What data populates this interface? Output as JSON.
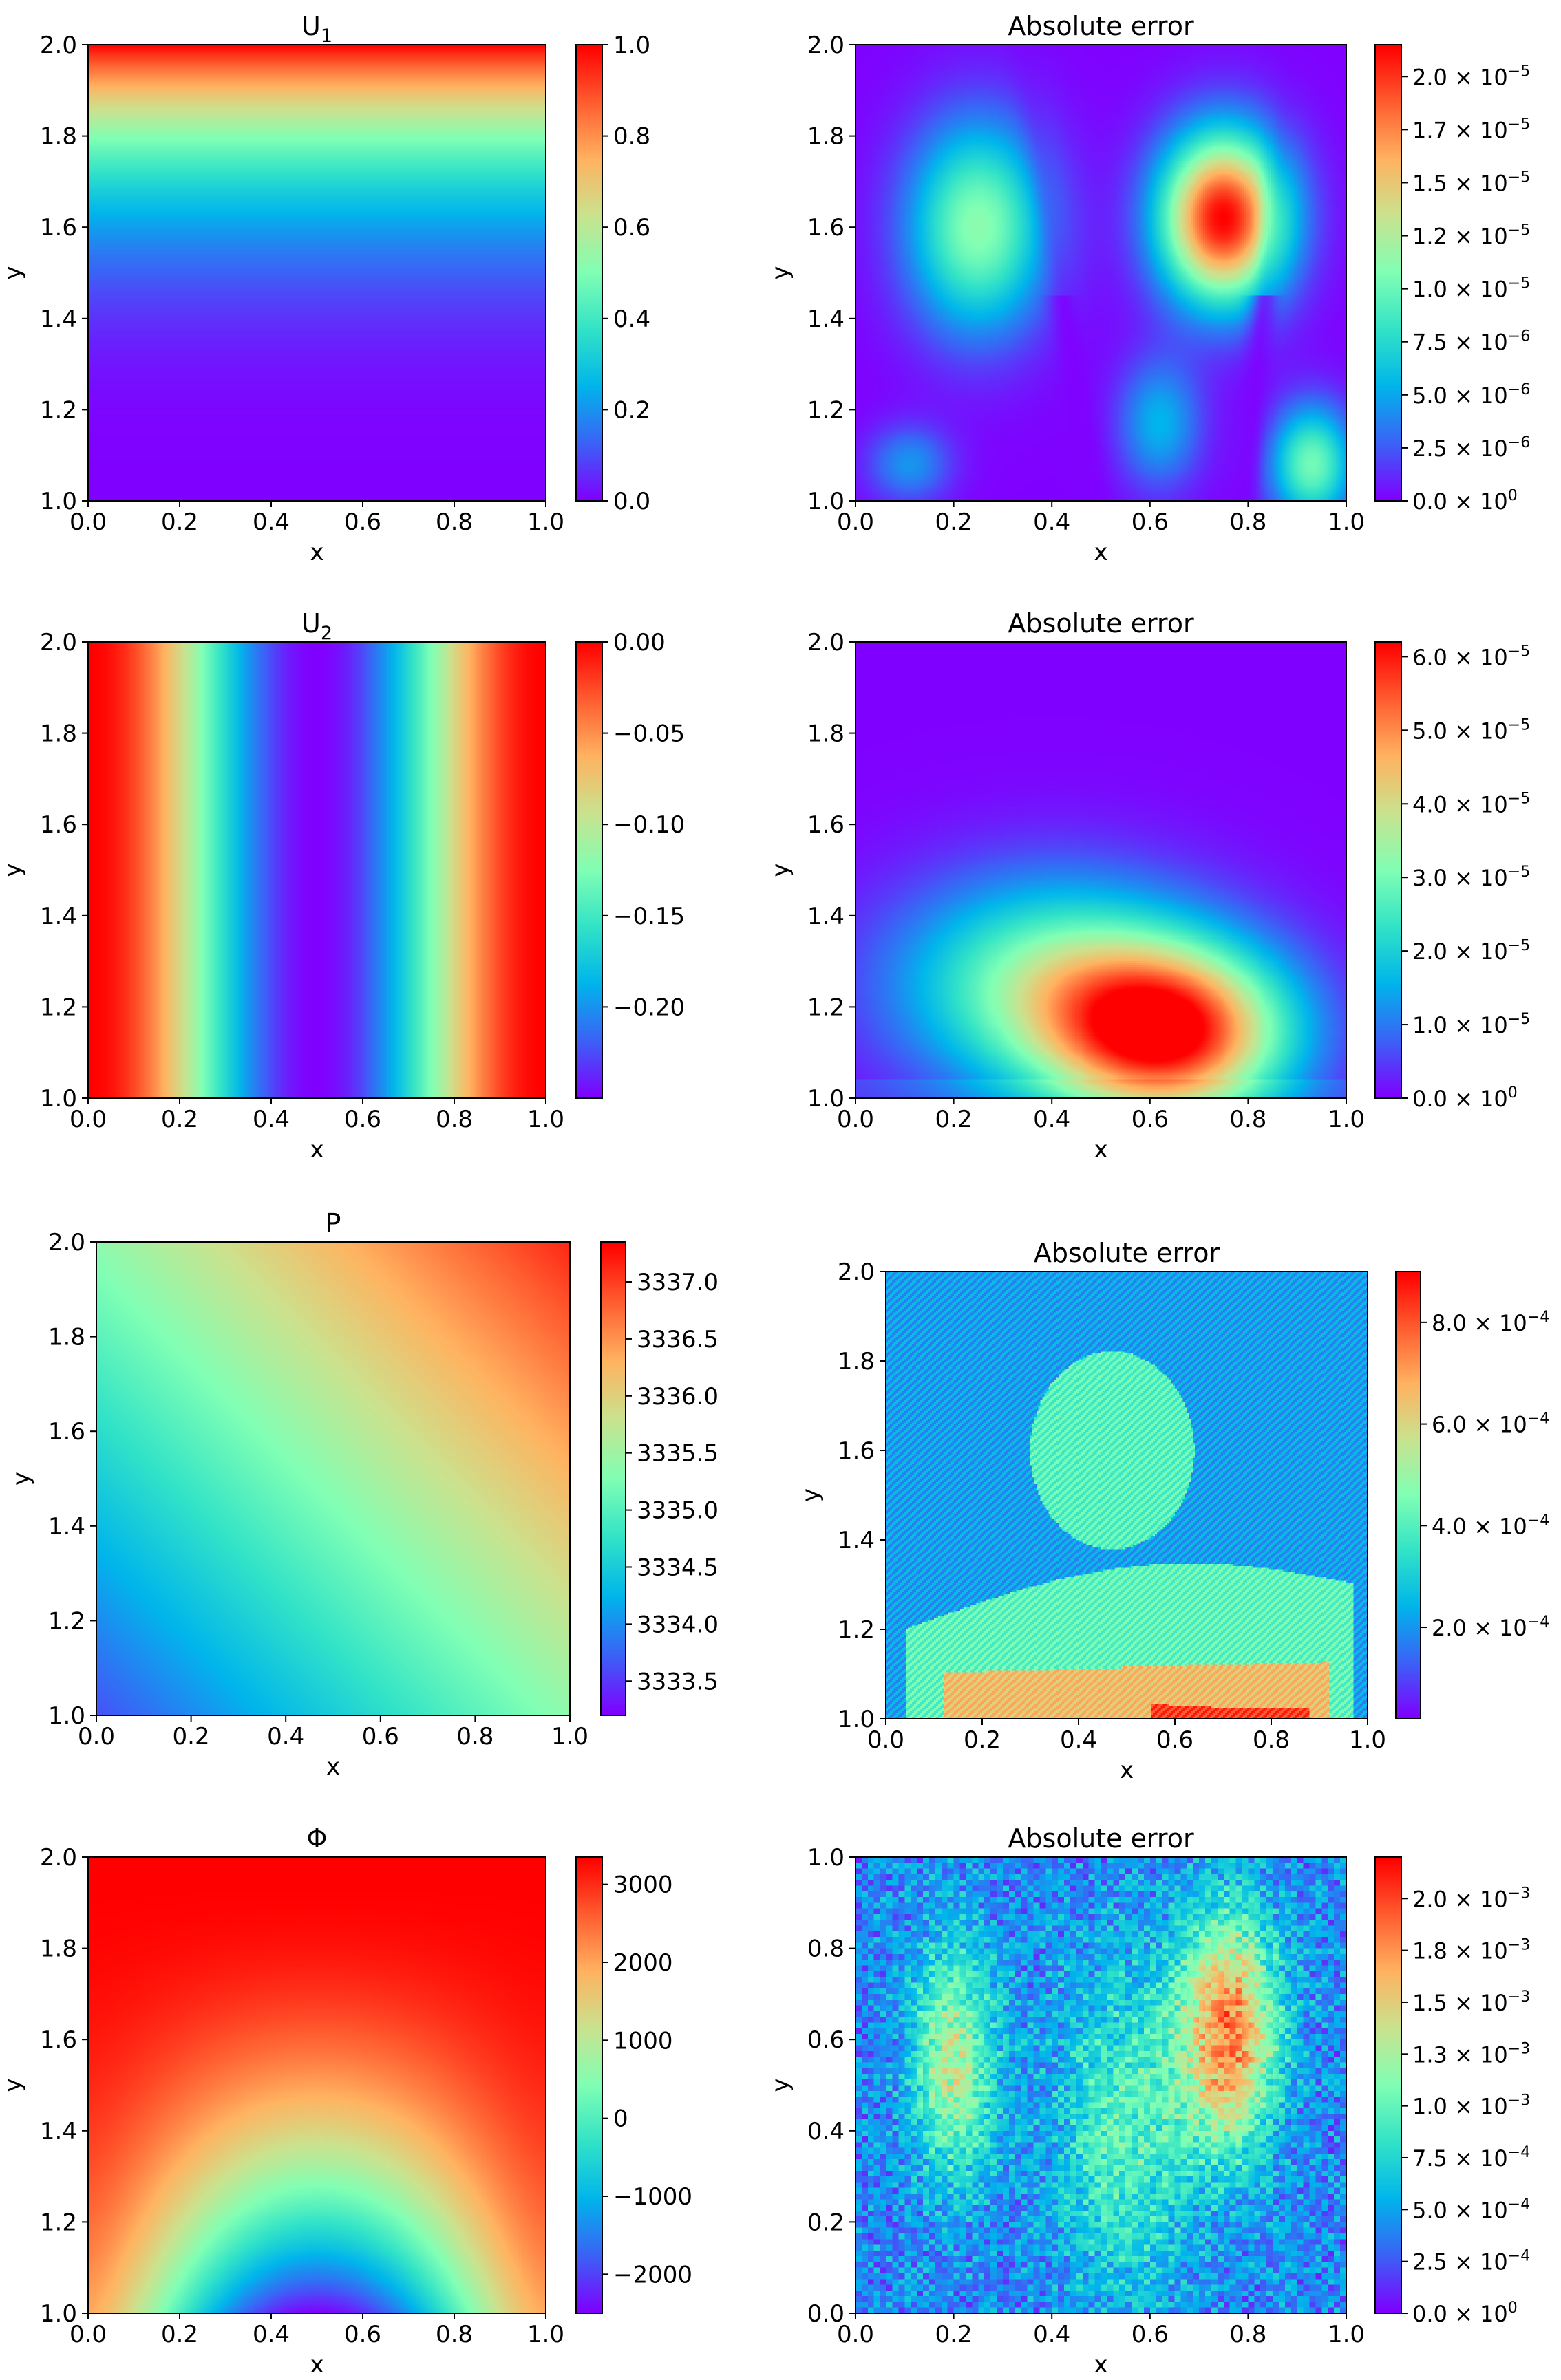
{
  "figure": {
    "colormap": "rainbow",
    "colormap_stops": [
      "#8000ff",
      "#3b62f6",
      "#00b5eb",
      "#32e3c7",
      "#80ffb4",
      "#c9e38f",
      "#ffb360",
      "#ff5d30",
      "#ff0000"
    ]
  },
  "chart_data": [
    {
      "id": "u1",
      "type": "heatmap",
      "title_main": "U",
      "title_sub": "1",
      "xlabel": "x",
      "ylabel": "y",
      "xlim": [
        0.0,
        1.0
      ],
      "ylim": [
        1.0,
        2.0
      ],
      "xticks": [
        "0.0",
        "0.2",
        "0.4",
        "0.6",
        "0.8",
        "1.0"
      ],
      "yticks": [
        "1.0",
        "1.2",
        "1.4",
        "1.6",
        "1.8",
        "2.0"
      ],
      "field": "u1",
      "colorbar": {
        "vmin": 0.0,
        "vmax": 1.0,
        "ticks": [
          {
            "v": 0.0,
            "label": "0.0"
          },
          {
            "v": 0.2,
            "label": "0.2"
          },
          {
            "v": 0.4,
            "label": "0.4"
          },
          {
            "v": 0.6,
            "label": "0.6"
          },
          {
            "v": 0.8,
            "label": "0.8"
          },
          {
            "v": 1.0,
            "label": "1.0"
          }
        ]
      }
    },
    {
      "id": "err_u1",
      "type": "heatmap",
      "title_main": "Absolute error",
      "title_sub": "",
      "xlabel": "x",
      "ylabel": "y",
      "xlim": [
        0.0,
        1.0
      ],
      "ylim": [
        1.0,
        2.0
      ],
      "xticks": [
        "0.0",
        "0.2",
        "0.4",
        "0.6",
        "0.8",
        "1.0"
      ],
      "yticks": [
        "1.0",
        "1.2",
        "1.4",
        "1.6",
        "1.8",
        "2.0"
      ],
      "field": "err_u1",
      "colorbar": {
        "vmin": 0.0,
        "vmax": 2.15e-05,
        "ticks": [
          {
            "v": 0.0,
            "mant": "0.0",
            "exp": "0"
          },
          {
            "v": 2.5e-06,
            "mant": "2.5",
            "exp": "−6"
          },
          {
            "v": 5e-06,
            "mant": "5.0",
            "exp": "−6"
          },
          {
            "v": 7.5e-06,
            "mant": "7.5",
            "exp": "−6"
          },
          {
            "v": 1e-05,
            "mant": "1.0",
            "exp": "−5"
          },
          {
            "v": 1.25e-05,
            "mant": "1.2",
            "exp": "−5"
          },
          {
            "v": 1.5e-05,
            "mant": "1.5",
            "exp": "−5"
          },
          {
            "v": 1.75e-05,
            "mant": "1.7",
            "exp": "−5"
          },
          {
            "v": 2e-05,
            "mant": "2.0",
            "exp": "−5"
          }
        ]
      }
    },
    {
      "id": "u2",
      "type": "heatmap",
      "title_main": "U",
      "title_sub": "2",
      "xlabel": "x",
      "ylabel": "y",
      "xlim": [
        0.0,
        1.0
      ],
      "ylim": [
        1.0,
        2.0
      ],
      "xticks": [
        "0.0",
        "0.2",
        "0.4",
        "0.6",
        "0.8",
        "1.0"
      ],
      "yticks": [
        "1.0",
        "1.2",
        "1.4",
        "1.6",
        "1.8",
        "2.0"
      ],
      "field": "u2",
      "colorbar": {
        "vmin": -0.25,
        "vmax": 0.0,
        "ticks": [
          {
            "v": -0.2,
            "label": "−0.20"
          },
          {
            "v": -0.15,
            "label": "−0.15"
          },
          {
            "v": -0.1,
            "label": "−0.10"
          },
          {
            "v": -0.05,
            "label": "−0.05"
          },
          {
            "v": 0.0,
            "label": "0.00"
          }
        ]
      }
    },
    {
      "id": "err_u2",
      "type": "heatmap",
      "title_main": "Absolute error",
      "title_sub": "",
      "xlabel": "x",
      "ylabel": "y",
      "xlim": [
        0.0,
        1.0
      ],
      "ylim": [
        1.0,
        2.0
      ],
      "xticks": [
        "0.0",
        "0.2",
        "0.4",
        "0.6",
        "0.8",
        "1.0"
      ],
      "yticks": [
        "1.0",
        "1.2",
        "1.4",
        "1.6",
        "1.8",
        "2.0"
      ],
      "field": "err_u2",
      "colorbar": {
        "vmin": 0.0,
        "vmax": 6.2e-05,
        "ticks": [
          {
            "v": 0.0,
            "mant": "0.0",
            "exp": "0"
          },
          {
            "v": 1e-05,
            "mant": "1.0",
            "exp": "−5"
          },
          {
            "v": 2e-05,
            "mant": "2.0",
            "exp": "−5"
          },
          {
            "v": 3e-05,
            "mant": "3.0",
            "exp": "−5"
          },
          {
            "v": 4e-05,
            "mant": "4.0",
            "exp": "−5"
          },
          {
            "v": 5e-05,
            "mant": "5.0",
            "exp": "−5"
          },
          {
            "v": 6e-05,
            "mant": "6.0",
            "exp": "−5"
          }
        ]
      }
    },
    {
      "id": "p",
      "type": "heatmap",
      "title_main": "P",
      "title_sub": "",
      "xlabel": "x",
      "ylabel": "y",
      "xlim": [
        0.0,
        1.0
      ],
      "ylim": [
        1.0,
        2.0
      ],
      "xticks": [
        "0.0",
        "0.2",
        "0.4",
        "0.6",
        "0.8",
        "1.0"
      ],
      "yticks": [
        "1.0",
        "1.2",
        "1.4",
        "1.6",
        "1.8",
        "2.0"
      ],
      "field": "p",
      "colorbar": {
        "vmin": 3333.2,
        "vmax": 3337.35,
        "ticks": [
          {
            "v": 3333.5,
            "label": "3333.5"
          },
          {
            "v": 3334.0,
            "label": "3334.0"
          },
          {
            "v": 3334.5,
            "label": "3334.5"
          },
          {
            "v": 3335.0,
            "label": "3335.0"
          },
          {
            "v": 3335.5,
            "label": "3335.5"
          },
          {
            "v": 3336.0,
            "label": "3336.0"
          },
          {
            "v": 3336.5,
            "label": "3336.5"
          },
          {
            "v": 3337.0,
            "label": "3337.0"
          }
        ]
      }
    },
    {
      "id": "err_p",
      "type": "heatmap",
      "title_main": "Absolute error",
      "title_sub": "",
      "xlabel": "x",
      "ylabel": "y",
      "xlim": [
        0.0,
        1.0
      ],
      "ylim": [
        1.0,
        2.0
      ],
      "xticks": [
        "0.0",
        "0.2",
        "0.4",
        "0.6",
        "0.8",
        "1.0"
      ],
      "yticks": [
        "1.0",
        "1.2",
        "1.4",
        "1.6",
        "1.8",
        "2.0"
      ],
      "field": "err_p",
      "colorbar": {
        "vmin": 2e-05,
        "vmax": 0.0009,
        "ticks": [
          {
            "v": 0.0002,
            "mant": "2.0",
            "exp": "−4"
          },
          {
            "v": 0.0004,
            "mant": "4.0",
            "exp": "−4"
          },
          {
            "v": 0.0006,
            "mant": "6.0",
            "exp": "−4"
          },
          {
            "v": 0.0008,
            "mant": "8.0",
            "exp": "−4"
          }
        ]
      }
    },
    {
      "id": "phi",
      "type": "heatmap",
      "title_main": "Φ",
      "title_sub": "",
      "xlabel": "x",
      "ylabel": "y",
      "xlim": [
        0.0,
        1.0
      ],
      "ylim": [
        1.0,
        2.0
      ],
      "xticks": [
        "0.0",
        "0.2",
        "0.4",
        "0.6",
        "0.8",
        "1.0"
      ],
      "yticks": [
        "1.0",
        "1.2",
        "1.4",
        "1.6",
        "1.8",
        "2.0"
      ],
      "field": "phi",
      "colorbar": {
        "vmin": -2500,
        "vmax": 3350,
        "ticks": [
          {
            "v": -2000,
            "label": "−2000"
          },
          {
            "v": -1000,
            "label": "−1000"
          },
          {
            "v": 0,
            "label": "0"
          },
          {
            "v": 1000,
            "label": "1000"
          },
          {
            "v": 2000,
            "label": "2000"
          },
          {
            "v": 3000,
            "label": "3000"
          }
        ]
      }
    },
    {
      "id": "err_phi",
      "type": "heatmap",
      "title_main": "Absolute error",
      "title_sub": "",
      "xlabel": "x",
      "ylabel": "y",
      "xlim": [
        0.0,
        1.0
      ],
      "ylim": [
        0.0,
        1.0
      ],
      "xticks": [
        "0.0",
        "0.2",
        "0.4",
        "0.6",
        "0.8",
        "1.0"
      ],
      "yticks": [
        "0.0",
        "0.2",
        "0.4",
        "0.6",
        "0.8",
        "1.0"
      ],
      "field": "err_phi",
      "colorbar": {
        "vmin": 0.0,
        "vmax": 0.0022,
        "ticks": [
          {
            "v": 0.0,
            "mant": "0.0",
            "exp": "0"
          },
          {
            "v": 0.00025,
            "mant": "2.5",
            "exp": "−4"
          },
          {
            "v": 0.0005,
            "mant": "5.0",
            "exp": "−4"
          },
          {
            "v": 0.00075,
            "mant": "7.5",
            "exp": "−4"
          },
          {
            "v": 0.001,
            "mant": "1.0",
            "exp": "−3"
          },
          {
            "v": 0.00125,
            "mant": "1.3",
            "exp": "−3"
          },
          {
            "v": 0.0015,
            "mant": "1.5",
            "exp": "−3"
          },
          {
            "v": 0.00175,
            "mant": "1.8",
            "exp": "−3"
          },
          {
            "v": 0.002,
            "mant": "2.0",
            "exp": "−3"
          }
        ]
      }
    }
  ]
}
